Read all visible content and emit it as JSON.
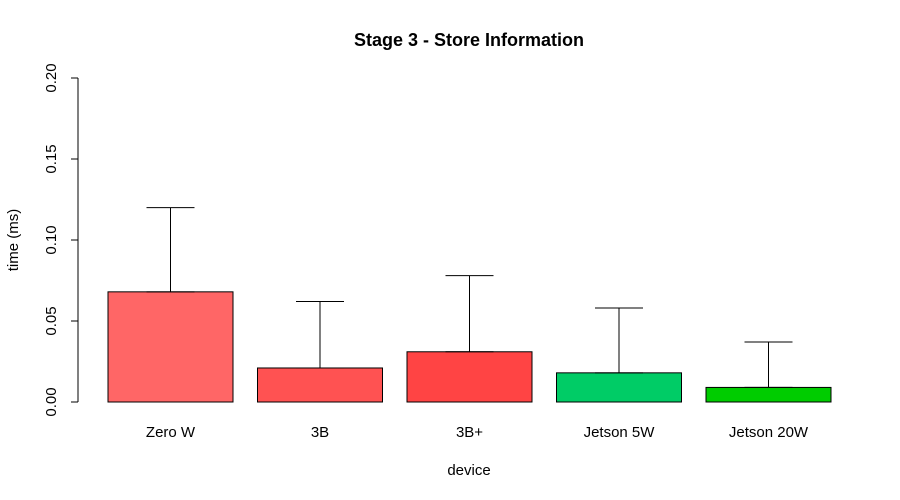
{
  "chart_data": {
    "type": "bar",
    "title": "Stage 3 - Store Information",
    "xlabel": "device",
    "ylabel": "time (ms)",
    "ylim": [
      0,
      0.2
    ],
    "yticks": [
      "0.00",
      "0.05",
      "0.10",
      "0.15",
      "0.20"
    ],
    "categories": [
      "Zero W",
      "3B",
      "3B+",
      "Jetson 5W",
      "Jetson 20W"
    ],
    "values": [
      0.068,
      0.021,
      0.031,
      0.018,
      0.009
    ],
    "error_upper": [
      0.12,
      0.062,
      0.078,
      0.058,
      0.037
    ],
    "colors": [
      "#FF6666",
      "#FF5252",
      "#FF4444",
      "#00CC66",
      "#00CC00"
    ],
    "grid": false,
    "legend": "none"
  }
}
